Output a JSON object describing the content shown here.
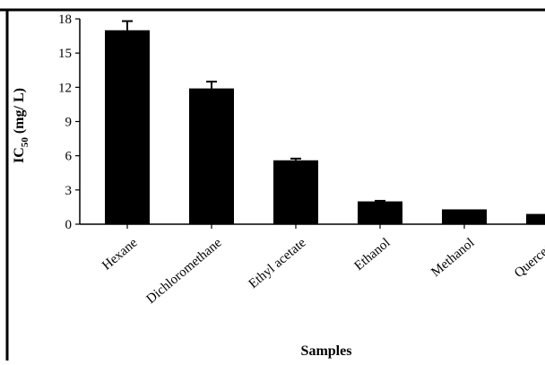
{
  "chart_data": {
    "type": "bar",
    "title": "",
    "xlabel": "Samples",
    "ylabel": {
      "main": "IC",
      "sub": "50",
      "rest": " (mg/ L)"
    },
    "categories": [
      "Hexane",
      "Dichloromethane",
      "Ethyl acetate",
      "Ethanol",
      "Methanol",
      "Quercetin"
    ],
    "values": [
      17.0,
      11.9,
      5.6,
      2.0,
      1.3,
      0.9
    ],
    "errors": [
      0.8,
      0.6,
      0.15,
      0.05,
      0.0,
      0.0
    ],
    "yticks": [
      "0",
      "3",
      "6",
      "9",
      "12",
      "15",
      "18"
    ],
    "ylim": [
      0,
      18
    ],
    "grid": false,
    "legend": "none",
    "bar_color": "#000000"
  }
}
